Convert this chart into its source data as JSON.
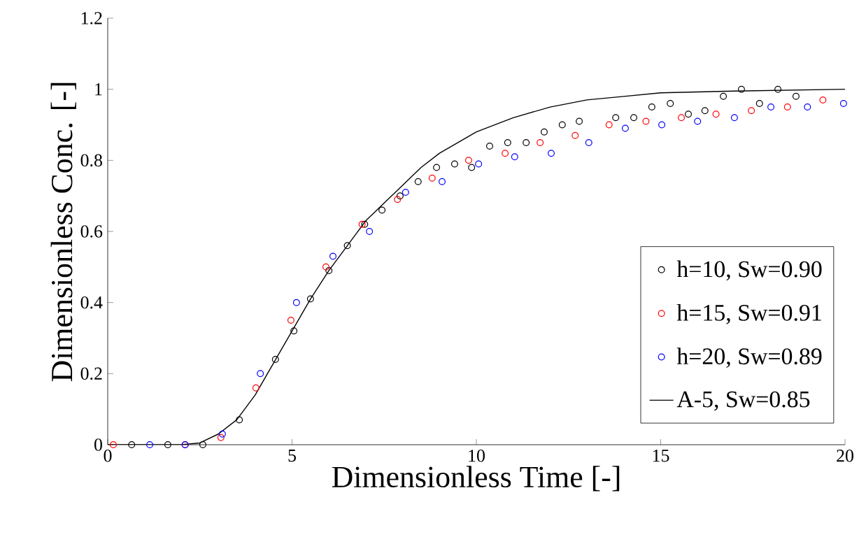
{
  "chart_data": {
    "type": "scatter",
    "xlabel": "Dimensionless Time [-]",
    "ylabel": "Dimensionless Conc. [-]",
    "xlim": [
      0,
      20
    ],
    "ylim": [
      0,
      1.2
    ],
    "xticks": [
      0,
      5,
      10,
      15,
      20
    ],
    "yticks": [
      0,
      0.2,
      0.4,
      0.6,
      0.8,
      1,
      1.2
    ],
    "grid": false,
    "legend": "bottom right",
    "marker": "circle",
    "series": [
      {
        "name": "h=10, Sw=0.90",
        "color": "#000000",
        "x": [
          0.65,
          1.63,
          2.58,
          3.57,
          4.55,
          5.05,
          5.5,
          6.0,
          6.5,
          6.97,
          7.44,
          7.93,
          8.42,
          8.92,
          9.41,
          9.87,
          10.36,
          10.85,
          11.35,
          11.84,
          12.33,
          12.79,
          13.78,
          14.27,
          14.76,
          15.26,
          15.75,
          16.2,
          16.7,
          17.19,
          17.68,
          18.18,
          18.67
        ],
        "values": [
          0,
          0,
          0,
          0.07,
          0.24,
          0.32,
          0.41,
          0.49,
          0.56,
          0.62,
          0.66,
          0.7,
          0.74,
          0.78,
          0.79,
          0.78,
          0.84,
          0.85,
          0.85,
          0.88,
          0.9,
          0.91,
          0.92,
          0.92,
          0.95,
          0.96,
          0.93,
          0.94,
          0.98,
          1.0,
          0.96,
          1.0,
          0.98
        ]
      },
      {
        "name": "h=15, Sw=0.91",
        "color": "#ff0000",
        "x": [
          0.15,
          2.1,
          3.07,
          4.02,
          4.97,
          5.92,
          6.9,
          7.86,
          8.8,
          9.79,
          10.78,
          11.73,
          12.68,
          13.6,
          14.6,
          15.56,
          16.5,
          17.46,
          18.44,
          19.4
        ],
        "values": [
          0,
          0,
          0.02,
          0.16,
          0.35,
          0.5,
          0.62,
          0.69,
          0.75,
          0.8,
          0.82,
          0.85,
          0.87,
          0.9,
          0.91,
          0.92,
          0.93,
          0.94,
          0.95,
          0.97
        ]
      },
      {
        "name": "h=20, Sw=0.89",
        "color": "#0000ff",
        "x": [
          1.14,
          2.1,
          3.11,
          4.14,
          5.12,
          6.11,
          7.1,
          8.08,
          9.07,
          10.06,
          11.04,
          12.03,
          13.05,
          14.04,
          15.03,
          16.0,
          17.0,
          17.99,
          18.98,
          19.96
        ],
        "values": [
          0,
          0,
          0.03,
          0.2,
          0.4,
          0.53,
          0.6,
          0.71,
          0.74,
          0.79,
          0.81,
          0.82,
          0.85,
          0.89,
          0.9,
          0.91,
          0.92,
          0.95,
          0.95,
          0.96
        ]
      },
      {
        "name": "A-5, Sw=0.85",
        "type": "line",
        "marker": "none",
        "color": "#000000",
        "x": [
          0,
          2,
          2.5,
          3,
          3.5,
          4,
          4.5,
          5,
          5.5,
          6,
          6.5,
          7,
          7.5,
          8,
          8.5,
          9,
          9.5,
          10,
          11,
          12,
          13,
          14,
          15,
          17,
          20
        ],
        "values": [
          0,
          0,
          0.005,
          0.03,
          0.07,
          0.14,
          0.23,
          0.32,
          0.41,
          0.49,
          0.56,
          0.63,
          0.68,
          0.73,
          0.78,
          0.82,
          0.85,
          0.88,
          0.92,
          0.95,
          0.97,
          0.98,
          0.99,
          0.995,
          1.0
        ]
      }
    ]
  }
}
